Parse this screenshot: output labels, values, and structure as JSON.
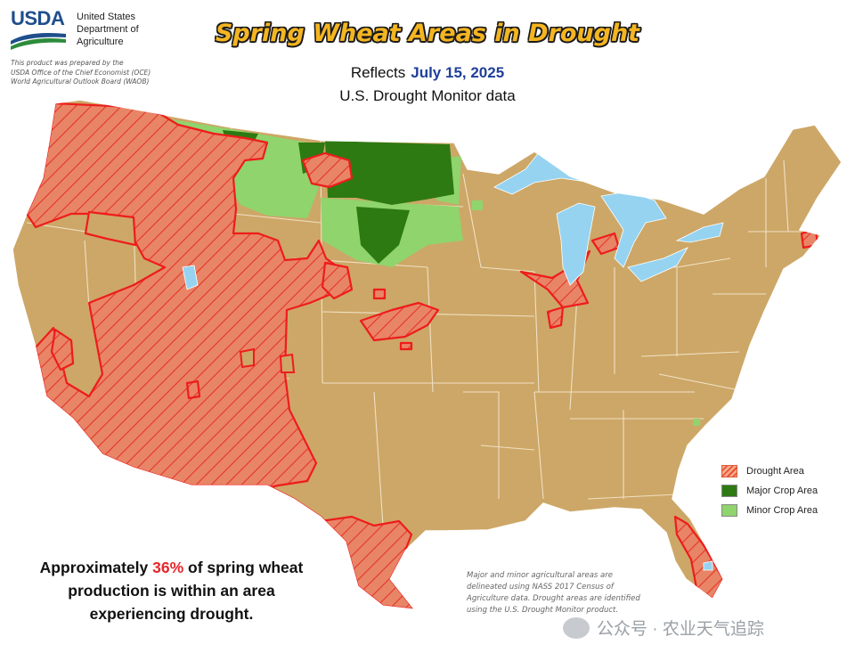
{
  "header": {
    "logo_text": "USDA",
    "agency_lines": [
      "United States",
      "Department of",
      "Agriculture"
    ],
    "prepared_lines": [
      "This product was prepared by the",
      "USDA Office of the Chief Economist (OCE)",
      "World Agricultural Outlook Board (WAOB)"
    ]
  },
  "title": "Spring Wheat Areas in Drought",
  "reflects": {
    "prefix": "Reflects",
    "date": "July 15, 2025"
  },
  "subtitle": "U.S. Drought Monitor data",
  "legend": {
    "items": [
      {
        "label": "Drought Area",
        "color": "#e8452c"
      },
      {
        "label": "Major Crop Area",
        "color": "#2e7a12"
      },
      {
        "label": "Minor Crop Area",
        "color": "#8fd46c"
      }
    ]
  },
  "statement": {
    "before": "Approximately ",
    "percent": "36%",
    "after": " of spring wheat production is within an area experiencing drought."
  },
  "note": "Major and minor agricultural areas are delineated using NASS 2017 Census of Agriculture data. Drought areas are identified using the U.S. Drought Monitor product.",
  "watermark": "公众号 · 农业天气追踪",
  "colors": {
    "land": "#cda767",
    "drought_fill": "#e88566",
    "drought_outline": "#ee1c1c",
    "major_crop": "#2e7a12",
    "minor_crop": "#8fd46c",
    "water": "#96d3f0",
    "title": "#f4b521"
  }
}
